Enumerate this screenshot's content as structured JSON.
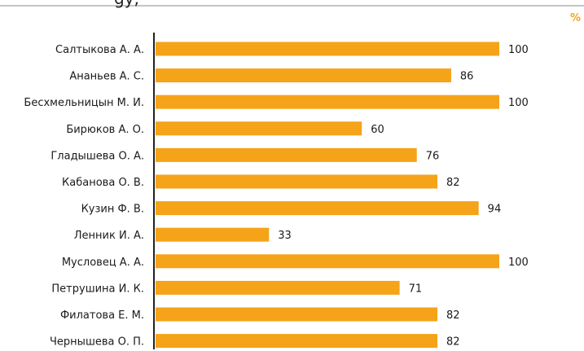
{
  "header": {
    "title_fragment": "gy,",
    "unit": "%"
  },
  "colors": {
    "bar": "#f5a318",
    "axis": "#222222",
    "rule": "#c4c4c4"
  },
  "chart_data": {
    "type": "bar",
    "orientation": "horizontal",
    "categories": [
      "Салтыкова А. А.",
      "Ананьев А. С.",
      "Бесхмельницын М. И.",
      "Бирюков А. О.",
      "Гладышева О. А.",
      "Кабанова О. В.",
      "Кузин Ф. В.",
      "Ленник И. А.",
      "Мусловец А. А.",
      "Петрушина И. К.",
      "Филатова Е. М.",
      "Чернышева О. П."
    ],
    "values": [
      100,
      86,
      100,
      60,
      76,
      82,
      94,
      33,
      100,
      71,
      82,
      82
    ],
    "xlim": [
      0,
      100
    ],
    "grid": false,
    "data_labels": true
  }
}
